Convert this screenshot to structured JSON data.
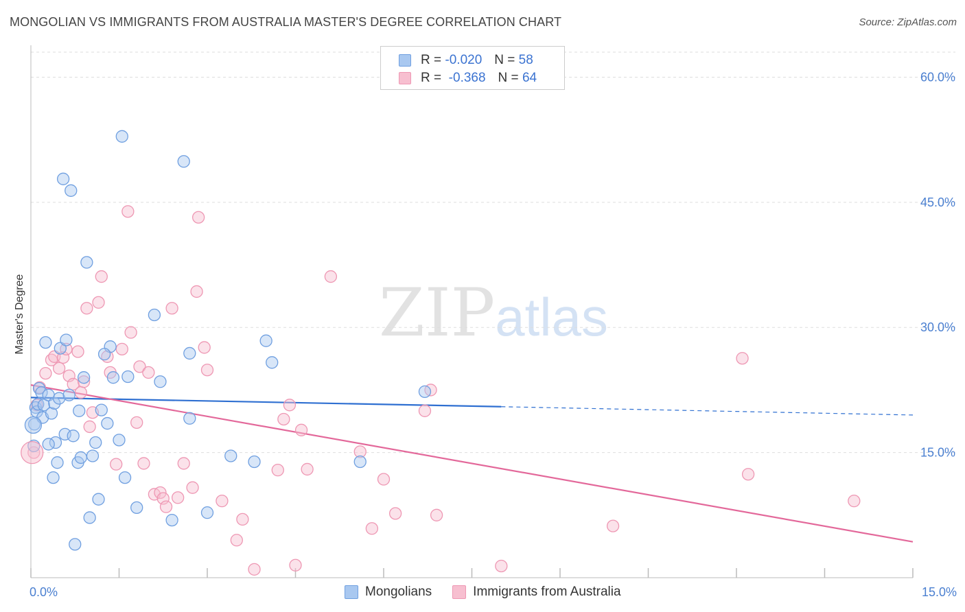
{
  "title": "MONGOLIAN VS IMMIGRANTS FROM AUSTRALIA MASTER'S DEGREE CORRELATION CHART",
  "source": "Source: ZipAtlas.com",
  "watermark": {
    "zip": "ZIP",
    "atlas": "atlas"
  },
  "legend": {
    "r_label": "R =",
    "n_label": "N =",
    "series1": {
      "r": "-0.020",
      "n": "58"
    },
    "series2": {
      "r": "-0.368",
      "n": "64"
    }
  },
  "colors": {
    "blue_fill": "#a9c8f0",
    "blue_stroke": "#6f9fe0",
    "blue_line": "#2e6fd1",
    "pink_fill": "#f7bfd0",
    "pink_stroke": "#ee97b3",
    "pink_line": "#e3689a",
    "grid": "#dddddd",
    "tick_text": "#4a7fd0"
  },
  "chart_data": {
    "type": "scatter",
    "title": "MONGOLIAN VS IMMIGRANTS FROM AUSTRALIA MASTER'S DEGREE CORRELATION CHART",
    "xlabel": "",
    "ylabel": "Master's Degree",
    "xlim": [
      0,
      15
    ],
    "ylim": [
      0,
      63
    ],
    "x_tick_labels": [
      "0.0%",
      "15.0%"
    ],
    "y_ticks": [
      15,
      30,
      45,
      60
    ],
    "y_tick_labels": [
      "15.0%",
      "30.0%",
      "45.0%",
      "60.0%"
    ],
    "series": [
      {
        "name": "Mongolians",
        "r": -0.02,
        "n": 58,
        "trend": {
          "x0": 0,
          "y0": 21.6,
          "x_solid_end": 8.0,
          "y_solid_end": 20.5,
          "x1": 15.0,
          "y1": 19.5
        },
        "points": [
          [
            0.05,
            15.8
          ],
          [
            0.06,
            18.4
          ],
          [
            0.08,
            20.4
          ],
          [
            0.1,
            19.9
          ],
          [
            0.12,
            20.8
          ],
          [
            0.14,
            22.7
          ],
          [
            0.18,
            22.2
          ],
          [
            0.2,
            19.2
          ],
          [
            0.22,
            20.7
          ],
          [
            0.25,
            28.2
          ],
          [
            0.3,
            21.9
          ],
          [
            0.35,
            19.7
          ],
          [
            0.38,
            12.0
          ],
          [
            0.4,
            20.9
          ],
          [
            0.42,
            16.2
          ],
          [
            0.45,
            13.8
          ],
          [
            0.48,
            21.5
          ],
          [
            0.5,
            27.5
          ],
          [
            0.55,
            47.8
          ],
          [
            0.58,
            17.2
          ],
          [
            0.6,
            28.5
          ],
          [
            0.65,
            21.9
          ],
          [
            0.68,
            46.4
          ],
          [
            0.72,
            17.0
          ],
          [
            0.75,
            4.0
          ],
          [
            0.8,
            13.8
          ],
          [
            0.82,
            20.0
          ],
          [
            0.85,
            14.4
          ],
          [
            0.9,
            24.0
          ],
          [
            0.95,
            37.8
          ],
          [
            1.0,
            7.2
          ],
          [
            1.05,
            14.6
          ],
          [
            1.1,
            16.2
          ],
          [
            1.15,
            9.4
          ],
          [
            1.2,
            20.1
          ],
          [
            1.3,
            18.5
          ],
          [
            1.35,
            27.7
          ],
          [
            1.4,
            24.0
          ],
          [
            1.5,
            16.5
          ],
          [
            1.55,
            52.9
          ],
          [
            1.6,
            12.0
          ],
          [
            1.65,
            24.1
          ],
          [
            1.8,
            8.4
          ],
          [
            2.1,
            31.5
          ],
          [
            2.2,
            23.5
          ],
          [
            2.4,
            6.9
          ],
          [
            2.6,
            49.9
          ],
          [
            2.7,
            19.1
          ],
          [
            2.7,
            26.9
          ],
          [
            3.0,
            7.8
          ],
          [
            3.4,
            14.6
          ],
          [
            3.8,
            13.9
          ],
          [
            4.0,
            28.4
          ],
          [
            4.1,
            25.8
          ],
          [
            5.6,
            13.9
          ],
          [
            6.7,
            22.3
          ],
          [
            0.3,
            16.0
          ],
          [
            1.25,
            26.8
          ]
        ]
      },
      {
        "name": "Immigrants from Australia",
        "r": -0.368,
        "n": 64,
        "trend": {
          "x0": 0,
          "y0": 23.1,
          "x1": 15.0,
          "y1": 4.3
        },
        "points": [
          [
            0.05,
            15.0
          ],
          [
            0.15,
            22.8
          ],
          [
            0.25,
            24.5
          ],
          [
            0.35,
            26.1
          ],
          [
            0.4,
            26.5
          ],
          [
            0.48,
            25.1
          ],
          [
            0.55,
            26.4
          ],
          [
            0.6,
            27.4
          ],
          [
            0.65,
            24.2
          ],
          [
            0.72,
            23.2
          ],
          [
            0.8,
            27.1
          ],
          [
            0.85,
            22.2
          ],
          [
            0.9,
            23.5
          ],
          [
            0.95,
            32.3
          ],
          [
            1.0,
            18.1
          ],
          [
            1.05,
            19.8
          ],
          [
            1.15,
            33.0
          ],
          [
            1.2,
            36.1
          ],
          [
            1.3,
            26.5
          ],
          [
            1.35,
            24.6
          ],
          [
            1.45,
            13.6
          ],
          [
            1.55,
            27.4
          ],
          [
            1.65,
            43.9
          ],
          [
            1.7,
            29.4
          ],
          [
            1.8,
            18.6
          ],
          [
            1.85,
            25.3
          ],
          [
            1.92,
            13.7
          ],
          [
            2.0,
            24.6
          ],
          [
            2.1,
            10.0
          ],
          [
            2.2,
            10.2
          ],
          [
            2.25,
            9.5
          ],
          [
            2.3,
            8.5
          ],
          [
            2.4,
            32.3
          ],
          [
            2.5,
            9.6
          ],
          [
            2.6,
            13.7
          ],
          [
            2.75,
            10.8
          ],
          [
            2.82,
            34.3
          ],
          [
            2.85,
            43.2
          ],
          [
            2.95,
            27.6
          ],
          [
            3.0,
            24.9
          ],
          [
            3.25,
            9.2
          ],
          [
            3.5,
            4.5
          ],
          [
            3.6,
            7.0
          ],
          [
            3.8,
            1.0
          ],
          [
            4.2,
            12.9
          ],
          [
            4.3,
            19.0
          ],
          [
            4.4,
            20.7
          ],
          [
            4.5,
            1.5
          ],
          [
            4.6,
            17.7
          ],
          [
            4.7,
            13.0
          ],
          [
            5.1,
            36.1
          ],
          [
            5.6,
            15.1
          ],
          [
            5.8,
            5.9
          ],
          [
            6.0,
            11.8
          ],
          [
            6.2,
            7.7
          ],
          [
            6.7,
            20.0
          ],
          [
            6.8,
            22.5
          ],
          [
            6.9,
            7.5
          ],
          [
            8.0,
            1.4
          ],
          [
            9.9,
            6.2
          ],
          [
            12.1,
            26.3
          ],
          [
            12.2,
            12.4
          ],
          [
            14.0,
            9.2
          ],
          [
            0.1,
            20.7
          ]
        ]
      }
    ]
  },
  "bottom_legend": {
    "series1": "Mongolians",
    "series2": "Immigrants from Australia"
  }
}
